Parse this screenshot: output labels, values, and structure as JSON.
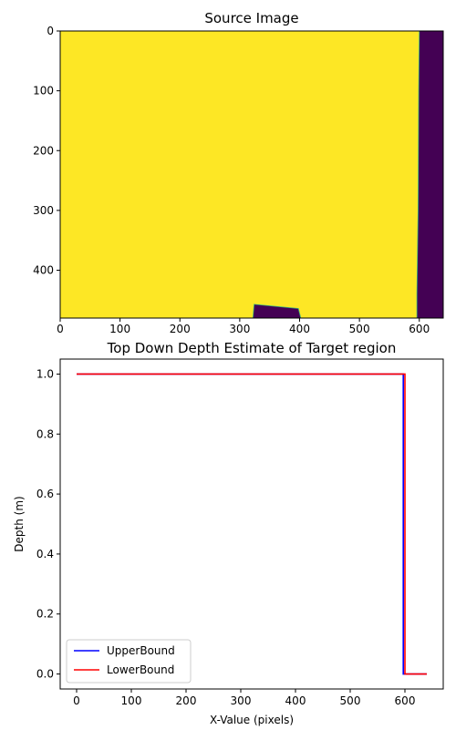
{
  "chart_data": [
    {
      "type": "heatmap",
      "title": "Source Image",
      "xlabel": "",
      "ylabel": "",
      "xlim": [
        0,
        640
      ],
      "ylim": [
        480,
        0
      ],
      "xticks": [
        0,
        100,
        200,
        300,
        400,
        500,
        600
      ],
      "yticks": [
        0,
        100,
        200,
        300,
        400
      ],
      "colors": {
        "background": "#fde725",
        "target": "#440154",
        "edge": "#35b779"
      },
      "regions": [
        {
          "name": "right-strip",
          "polygon": [
            [
              600,
              0
            ],
            [
              640,
              0
            ],
            [
              640,
              480
            ],
            [
              596,
              480
            ],
            [
              596,
              440
            ],
            [
              598,
              300
            ],
            [
              599,
              100
            ],
            [
              600,
              0
            ]
          ]
        },
        {
          "name": "bottom-blob",
          "polygon": [
            [
              322,
              480
            ],
            [
              324,
              457
            ],
            [
              398,
              464
            ],
            [
              402,
              480
            ]
          ]
        }
      ]
    },
    {
      "type": "line",
      "title": "Top Down Depth Estimate of Target region",
      "xlabel": "X-Value (pixels)",
      "ylabel": "Depth (m)",
      "xlim": [
        -30,
        670
      ],
      "ylim": [
        -0.05,
        1.05
      ],
      "xticks": [
        0,
        100,
        200,
        300,
        400,
        500,
        600
      ],
      "yticks": [
        0.0,
        0.2,
        0.4,
        0.6,
        0.8,
        1.0
      ],
      "legend_position": "lower-left",
      "series": [
        {
          "name": "UpperBound",
          "color": "#0000ff",
          "x": [
            0,
            597,
            597,
            640
          ],
          "y": [
            1.0,
            1.0,
            0.0,
            0.0
          ]
        },
        {
          "name": "LowerBound",
          "color": "#ff0000",
          "x": [
            0,
            600,
            600,
            640
          ],
          "y": [
            1.0,
            1.0,
            0.0,
            0.0
          ]
        }
      ]
    }
  ]
}
